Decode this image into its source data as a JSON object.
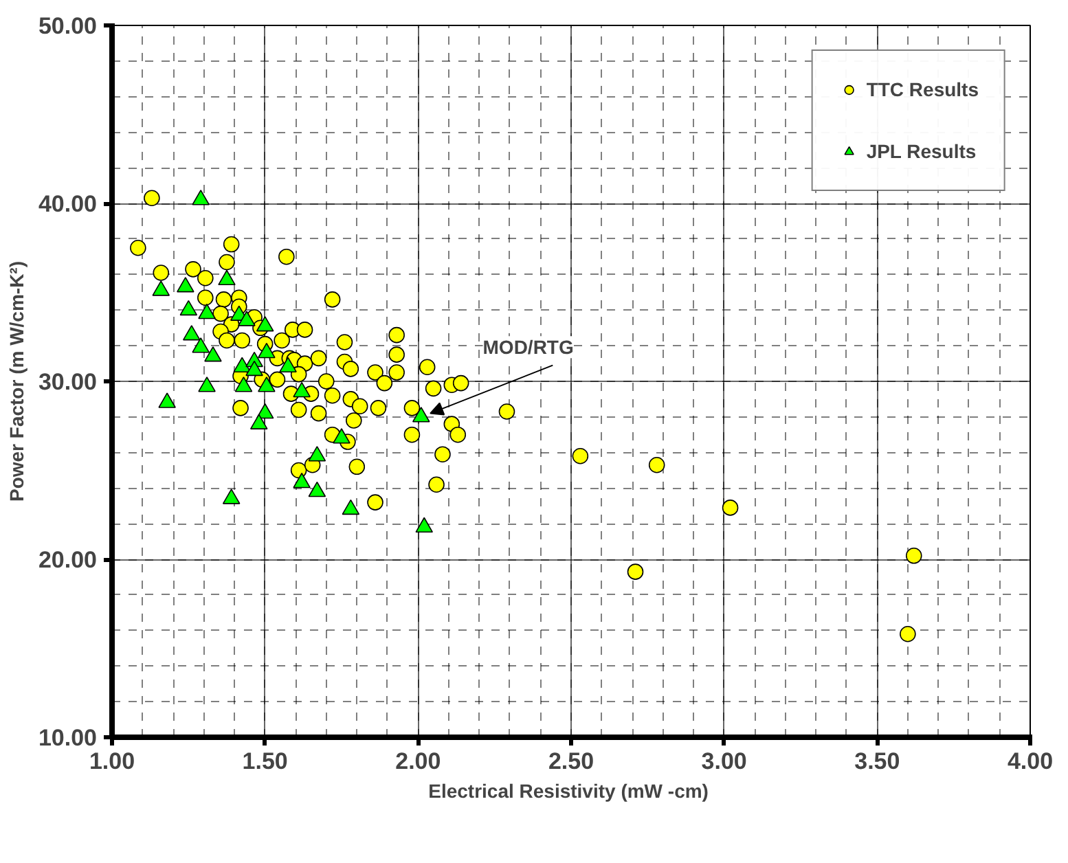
{
  "chart_data": {
    "type": "scatter",
    "xlabel": "Electrical Resistivity (mW  -cm)",
    "ylabel": "Power Factor (m W/cm-K²)",
    "xlim": [
      1,
      4
    ],
    "ylim": [
      10,
      50
    ],
    "xticks": [
      {
        "value": 1,
        "label": "1.00"
      },
      {
        "value": 1.5,
        "label": "1.50"
      },
      {
        "value": 2,
        "label": "2.00"
      },
      {
        "value": 2.5,
        "label": "2.50"
      },
      {
        "value": 3,
        "label": "3.00"
      },
      {
        "value": 3.5,
        "label": "3.50"
      },
      {
        "value": 4,
        "label": "4.00"
      }
    ],
    "yticks": [
      {
        "value": 10,
        "label": "10.00"
      },
      {
        "value": 20,
        "label": "20.00"
      },
      {
        "value": 30,
        "label": "30.00"
      },
      {
        "value": 40,
        "label": "40.00"
      },
      {
        "value": 50,
        "label": "50.00"
      }
    ],
    "grid": true,
    "legend": "top right",
    "annotations": [
      {
        "text": "MOD/RTG",
        "x": 2.01,
        "y": 28.0
      }
    ],
    "series": [
      {
        "name": "TTC Results",
        "color": "#ffff00",
        "marker": "circle",
        "x": [
          1.13,
          1.085,
          1.16,
          1.265,
          1.39,
          1.375,
          1.305,
          1.305,
          1.365,
          1.415,
          1.415,
          1.355,
          1.39,
          1.355,
          1.375,
          1.425,
          1.465,
          1.485,
          1.5,
          1.54,
          1.555,
          1.57,
          1.59,
          1.63,
          1.58,
          1.595,
          1.63,
          1.675,
          1.72,
          1.42,
          1.49,
          1.54,
          1.61,
          1.7,
          1.72,
          1.585,
          1.65,
          1.61,
          1.675,
          1.42,
          1.72,
          1.61,
          1.655,
          1.76,
          1.76,
          1.78,
          1.86,
          1.89,
          1.93,
          1.93,
          1.93,
          2.03,
          2.05,
          2.11,
          2.14,
          2.29,
          2.53,
          1.78,
          1.81,
          1.87,
          1.98,
          1.79,
          2.11,
          2.13,
          1.98,
          1.77,
          2.08,
          1.8,
          2.06,
          1.86,
          2.78,
          3.02,
          2.71,
          3.62,
          3.6
        ],
        "values": [
          40.3,
          37.5,
          36.1,
          36.3,
          37.7,
          36.7,
          35.8,
          34.7,
          34.6,
          34.7,
          34.2,
          33.8,
          33.2,
          32.8,
          32.3,
          32.3,
          33.6,
          33.0,
          32.1,
          31.3,
          32.3,
          37.0,
          32.9,
          32.9,
          31.3,
          31.2,
          31.0,
          31.3,
          34.6,
          30.3,
          30.1,
          30.1,
          30.4,
          30.0,
          29.2,
          29.3,
          29.3,
          28.4,
          28.2,
          28.5,
          27.0,
          25.0,
          25.3,
          32.2,
          31.1,
          30.7,
          30.5,
          29.9,
          32.6,
          31.5,
          30.5,
          30.8,
          29.6,
          29.8,
          29.9,
          28.3,
          25.8,
          29.0,
          28.6,
          28.5,
          28.5,
          27.8,
          27.6,
          27.0,
          27.0,
          26.6,
          25.9,
          25.2,
          24.2,
          23.2,
          25.3,
          22.9,
          19.3,
          20.2,
          15.8
        ]
      },
      {
        "name": "JPL Results",
        "color": "#00ff00",
        "marker": "triangle",
        "x": [
          1.29,
          1.16,
          1.24,
          1.375,
          1.25,
          1.31,
          1.415,
          1.44,
          1.5,
          1.26,
          1.29,
          1.33,
          1.505,
          1.425,
          1.465,
          1.465,
          1.575,
          1.43,
          1.31,
          1.505,
          1.18,
          1.5,
          1.48,
          1.62,
          1.67,
          1.62,
          1.67,
          1.39,
          1.75,
          2.01,
          1.78,
          2.02
        ],
        "values": [
          40.2,
          35.1,
          35.3,
          35.7,
          34.0,
          33.8,
          33.7,
          33.4,
          33.1,
          32.6,
          31.9,
          31.4,
          31.6,
          30.8,
          31.1,
          30.6,
          30.8,
          29.7,
          29.7,
          29.7,
          28.8,
          28.2,
          27.6,
          29.4,
          25.8,
          24.3,
          23.8,
          23.4,
          26.8,
          28.0,
          22.8,
          21.8
        ]
      }
    ]
  }
}
